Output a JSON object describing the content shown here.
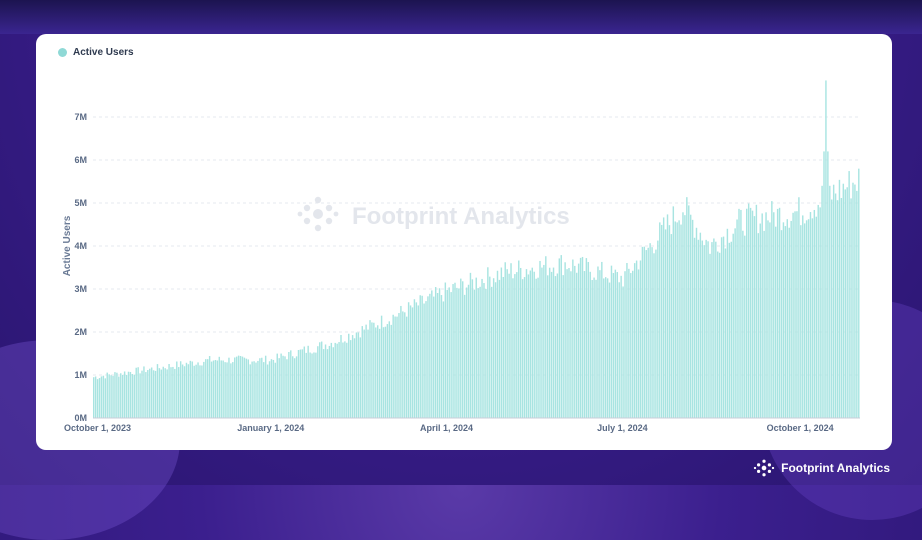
{
  "brand": {
    "name": "Footprint Analytics",
    "watermark": "Footprint Analytics"
  },
  "colors": {
    "bar": "#a8e4e1",
    "bar_edge": "#7fd0cc",
    "legend": "#8fd9d6",
    "axis_text": "#5a6a85",
    "grid": "#e6e9ef"
  },
  "chart_data": {
    "type": "bar",
    "legend": [
      "Active Users"
    ],
    "ylabel": "Active Users",
    "xlabel": "",
    "ylim": [
      0,
      8000000
    ],
    "y_ticks": [
      "0M",
      "1M",
      "2M",
      "3M",
      "4M",
      "5M",
      "6M",
      "7M"
    ],
    "x_tick_labels": [
      "October 1, 2023",
      "January 1, 2024",
      "April 1, 2024",
      "July 1, 2024",
      "October 1, 2024"
    ],
    "x_tick_months": [
      0,
      3,
      6,
      9,
      12
    ],
    "date_range": [
      "2023-10-01",
      "2024-10-31"
    ],
    "series": [
      {
        "name": "Active Users",
        "monthly_points": [
          {
            "date": "2023-10-01",
            "value": 950000
          },
          {
            "date": "2023-11-01",
            "value": 1150000
          },
          {
            "date": "2023-12-01",
            "value": 1350000
          },
          {
            "date": "2024-01-01",
            "value": 1350000
          },
          {
            "date": "2024-02-01",
            "value": 1750000
          },
          {
            "date": "2024-03-01",
            "value": 2300000
          },
          {
            "date": "2024-04-01",
            "value": 2950000
          },
          {
            "date": "2024-05-01",
            "value": 3400000
          },
          {
            "date": "2024-06-01",
            "value": 3600000
          },
          {
            "date": "2024-07-01",
            "value": 3250000
          },
          {
            "date": "2024-08-01",
            "value": 4900000
          },
          {
            "date": "2024-08-15",
            "value": 4000000
          },
          {
            "date": "2024-09-01",
            "value": 4600000
          },
          {
            "date": "2024-09-15",
            "value": 4700000
          },
          {
            "date": "2024-10-01",
            "value": 4800000
          },
          {
            "date": "2024-10-31",
            "value": 5550000
          }
        ],
        "peak": {
          "date": "2024-10-14",
          "value": 7850000
        }
      }
    ]
  }
}
